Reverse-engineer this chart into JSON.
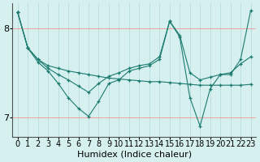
{
  "xlabel": "Humidex (Indice chaleur)",
  "background_color": "#d6f0f0",
  "line_color": "#1a7a6e",
  "xlim": [
    -0.5,
    23.5
  ],
  "ylim": [
    6.78,
    8.28
  ],
  "yticks": [
    7,
    8
  ],
  "xticks": [
    0,
    1,
    2,
    3,
    4,
    5,
    6,
    7,
    8,
    9,
    10,
    11,
    12,
    13,
    14,
    15,
    16,
    17,
    18,
    19,
    20,
    21,
    22,
    23
  ],
  "line1": [
    8.18,
    7.78,
    7.65,
    7.58,
    7.55,
    7.52,
    7.5,
    7.48,
    7.46,
    7.44,
    7.43,
    7.42,
    7.41,
    7.4,
    7.4,
    7.39,
    7.38,
    7.37,
    7.36,
    7.36,
    7.36,
    7.36,
    7.36,
    7.37
  ],
  "line2": [
    8.18,
    7.78,
    7.65,
    7.55,
    7.48,
    7.42,
    7.35,
    7.28,
    7.38,
    7.46,
    7.5,
    7.55,
    7.58,
    7.6,
    7.68,
    8.08,
    7.92,
    7.5,
    7.42,
    7.45,
    7.48,
    7.5,
    7.6,
    7.68
  ],
  "line3": [
    8.18,
    7.78,
    7.62,
    7.52,
    7.38,
    7.22,
    7.1,
    7.01,
    7.18,
    7.38,
    7.42,
    7.52,
    7.55,
    7.58,
    7.65,
    8.08,
    7.9,
    7.22,
    6.9,
    7.32,
    7.48,
    7.48,
    7.65,
    8.2
  ],
  "fontsize_label": 8,
  "fontsize_tick": 7
}
